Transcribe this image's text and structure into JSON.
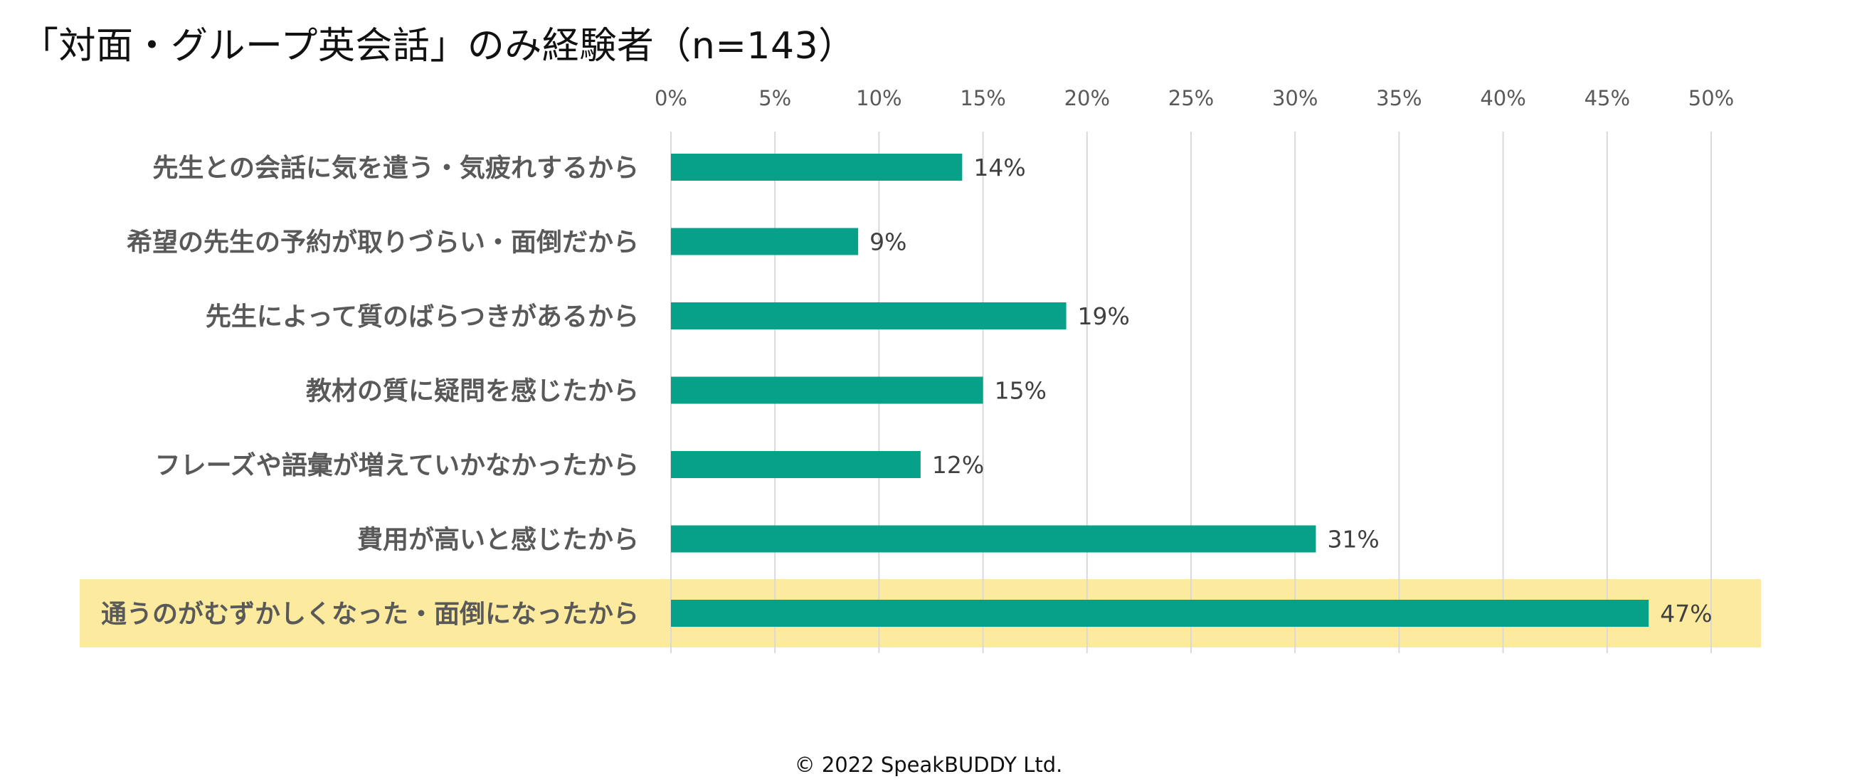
{
  "title": "「対面・グループ英会話」のみ経験者（n=143）",
  "copyright": "© 2022 SpeakBUDDY Ltd.",
  "colors": {
    "bar": "#07A089",
    "highlight": "#FCEB9F",
    "grid": "#D9D9D9",
    "category_text": "#595959",
    "tick_text": "#595959",
    "label_text": "#404040"
  },
  "chart_data": {
    "type": "bar",
    "orientation": "horizontal",
    "title": "「対面・グループ英会話」のみ経験者（n=143）",
    "xlabel": "",
    "ylabel": "",
    "xlim": [
      0,
      50
    ],
    "ticks": [
      0,
      5,
      10,
      15,
      20,
      25,
      30,
      35,
      40,
      45,
      50
    ],
    "tick_labels": [
      "0%",
      "5%",
      "10%",
      "15%",
      "20%",
      "25%",
      "30%",
      "35%",
      "40%",
      "45%",
      "50%"
    ],
    "tick_position": "top",
    "grid": true,
    "categories": [
      "先生との会話に気を遣う・気疲れするから",
      "希望の先生の予約が取りづらい・面倒だから",
      "先生によって質のばらつきがあるから",
      "教材の質に疑問を感じたから",
      "フレーズや語彙が増えていかなかったから",
      "費用が高いと感じたから",
      "通うのがむずかしくなった・面倒になったから"
    ],
    "values": [
      14,
      9,
      19,
      15,
      12,
      31,
      47
    ],
    "value_labels": [
      "14%",
      "9%",
      "19%",
      "15%",
      "12%",
      "31%",
      "47%"
    ],
    "highlighted_index": 6
  }
}
